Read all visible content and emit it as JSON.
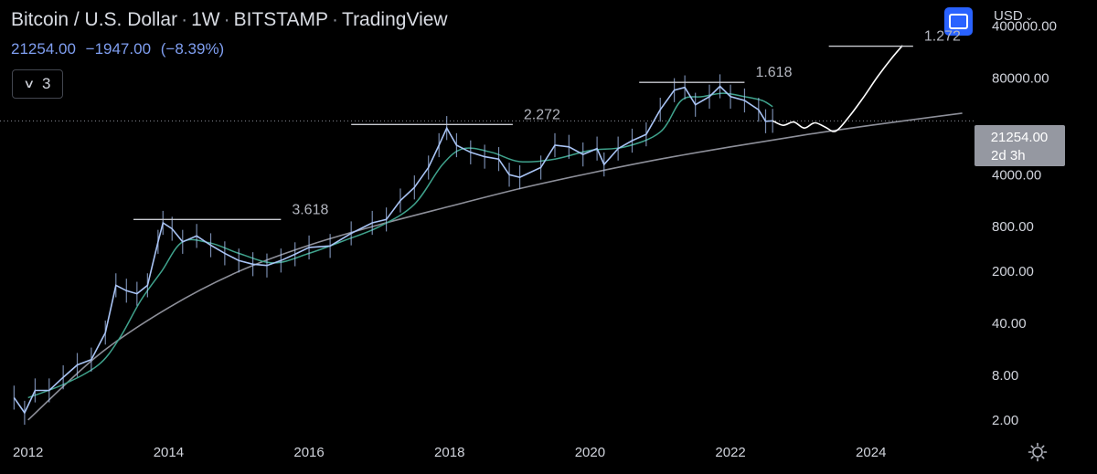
{
  "header": {
    "symbol": "Bitcoin / U.S. Dollar",
    "interval": "1W",
    "exchange": "BITSTAMP",
    "source": "TradingView",
    "separator": "·",
    "last_price": "21254.00",
    "change": "−1947.00",
    "change_pct": "(−8.39%)",
    "collapse_count": "3"
  },
  "toolbar": {
    "currency": "USD",
    "currency_chevron": "⌄"
  },
  "price_label": {
    "value": "21254.00",
    "countdown": "2d 3h"
  },
  "colors": {
    "background": "#000000",
    "candle": "#a9c4f5",
    "ma": "#3fa28c",
    "curve": "#8d8f99",
    "projection": "#ffffff",
    "accent": "#2962ff",
    "price_label_bg": "#9598a1"
  },
  "chart_data": {
    "type": "line",
    "title": "Bitcoin / U.S. Dollar · 1W · BITSTAMP",
    "yscale": "log",
    "ylim": [
      1.5,
      900000
    ],
    "xlim": [
      2011.6,
      2025.5
    ],
    "grid": false,
    "x_ticks": [
      2012,
      2014,
      2016,
      2018,
      2020,
      2022,
      2024
    ],
    "x_tick_labels": [
      "2012",
      "2014",
      "2016",
      "2018",
      "2020",
      "2022",
      "2024"
    ],
    "y_ticks": [
      400000,
      80000,
      4000,
      800,
      200,
      40,
      8,
      2
    ],
    "y_tick_labels": [
      "400000.00",
      "80000.00",
      "4000.00",
      "800.00",
      "200.00",
      "40.00",
      "8.00",
      "2.00"
    ],
    "series": [
      {
        "kind": "price",
        "x": [
          2011.8,
          2011.95,
          2012.1,
          2012.3,
          2012.5,
          2012.7,
          2012.9,
          2013.1,
          2013.25,
          2013.4,
          2013.55,
          2013.7,
          2013.85,
          2013.92,
          2014.05,
          2014.2,
          2014.4,
          2014.6,
          2014.8,
          2015.0,
          2015.2,
          2015.4,
          2015.6,
          2015.8,
          2016.0,
          2016.3,
          2016.6,
          2016.9,
          2017.1,
          2017.3,
          2017.5,
          2017.7,
          2017.85,
          2017.96,
          2018.1,
          2018.3,
          2018.5,
          2018.7,
          2018.85,
          2019.0,
          2019.3,
          2019.5,
          2019.7,
          2019.9,
          2020.1,
          2020.2,
          2020.4,
          2020.6,
          2020.8,
          2021.0,
          2021.2,
          2021.35,
          2021.5,
          2021.7,
          2021.85,
          2022.0,
          2022.2,
          2022.4,
          2022.5,
          2022.6
        ],
        "y": [
          4,
          2.5,
          5,
          5,
          7.5,
          11,
          13,
          30,
          130,
          110,
          100,
          130,
          500,
          900,
          750,
          500,
          600,
          450,
          350,
          280,
          250,
          240,
          280,
          340,
          420,
          440,
          650,
          900,
          1000,
          1800,
          2700,
          5000,
          10000,
          17000,
          10000,
          8000,
          7000,
          6500,
          4000,
          3700,
          5000,
          10000,
          9500,
          7500,
          9000,
          5500,
          9000,
          11500,
          14000,
          30000,
          55000,
          60000,
          35000,
          45000,
          62000,
          45000,
          40000,
          30000,
          21000,
          21254
        ]
      },
      {
        "kind": "moving_average",
        "x": [
          2012.0,
          2012.5,
          2013.0,
          2013.3,
          2013.6,
          2013.9,
          2014.2,
          2014.6,
          2015.0,
          2015.5,
          2016.0,
          2016.5,
          2017.0,
          2017.5,
          2017.9,
          2018.2,
          2018.6,
          2019.0,
          2019.5,
          2020.0,
          2020.5,
          2021.0,
          2021.3,
          2021.6,
          2021.9,
          2022.2,
          2022.45,
          2022.6
        ],
        "y": [
          4,
          6,
          11,
          25,
          80,
          200,
          500,
          480,
          350,
          260,
          350,
          520,
          800,
          1600,
          5500,
          9000,
          8000,
          6000,
          6500,
          8500,
          9500,
          15000,
          40000,
          45000,
          50000,
          45000,
          40000,
          33000
        ]
      },
      {
        "kind": "log_growth_curve",
        "x": [
          2012.0,
          2013.0,
          2014.0,
          2015.0,
          2016.0,
          2017.0,
          2018.0,
          2019.0,
          2020.0,
          2021.0,
          2022.0,
          2023.0,
          2024.0,
          2025.3
        ],
        "y": [
          2,
          15,
          65,
          200,
          450,
          850,
          1500,
          2600,
          4200,
          6500,
          9500,
          13500,
          18500,
          27000
        ]
      },
      {
        "kind": "projection",
        "x": [
          2022.6,
          2022.75,
          2022.9,
          2023.05,
          2023.2,
          2023.35,
          2023.5,
          2023.7,
          2023.9,
          2024.1,
          2024.3,
          2024.45
        ],
        "y": [
          21254,
          18500,
          20500,
          17000,
          20000,
          17500,
          15500,
          25000,
          45000,
          85000,
          150000,
          220000
        ]
      }
    ],
    "annotations": [
      {
        "label": "3.618",
        "x_start": 2013.5,
        "x_end": 2015.6,
        "y": 1000
      },
      {
        "label": "2.272",
        "x_start": 2016.6,
        "x_end": 2018.9,
        "y": 19000
      },
      {
        "label": "1.618",
        "x_start": 2020.7,
        "x_end": 2022.2,
        "y": 70000
      },
      {
        "label": "1.272",
        "x_start": 2023.4,
        "x_end": 2024.6,
        "y": 215000
      }
    ],
    "last_price_line": 21254
  }
}
